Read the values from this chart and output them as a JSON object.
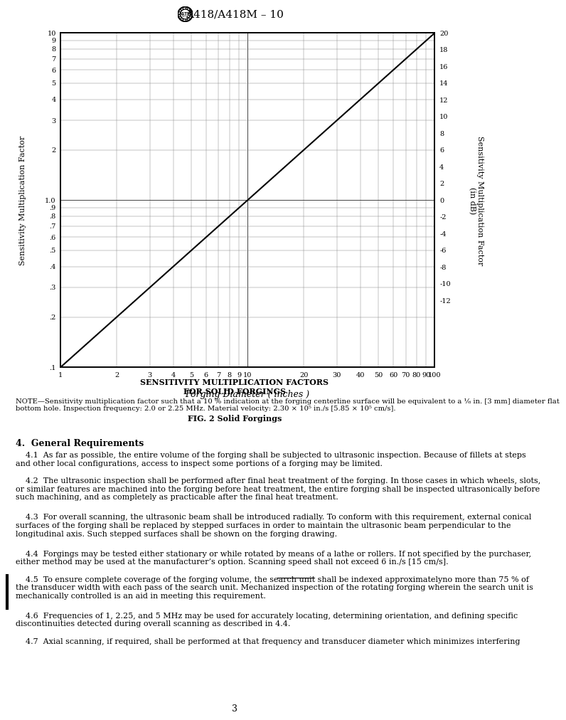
{
  "title": "A418/A418M – 10",
  "xlabel": "Forging Diameter ( inches )",
  "ylabel_left": "Sensitivity Multiplication Factor",
  "ylabel_right": "Sensitivity Multiplication Factor\n(in dB)",
  "chart_subtitle_line1": "SENSITIVITY MULTIPLICATION FACTORS",
  "chart_subtitle_line2": "FOR SOLID FORGINGS",
  "note_line1": "NOTE—Sensitivity multiplication factor such that a 10 % indication at the forging centerline surface will be equivalent to a ⅛ in. [3 mm] diameter flat",
  "note_line2": "bottom hole. Inspection frequency: 2.0 or 2.25 MHz. Material velocity: 2.30 × 10⁵ in./s [5.85 × 10⁵ cm/s].",
  "fig_caption": "FIG. 2 Solid Forgings",
  "page_number": "3",
  "section_header": "4.  General Requirements",
  "paragraphs": [
    "    4.1  As far as possible, the entire volume of the forging shall be subjected to ultrasonic inspection. Because of fillets at steps\nand other local configurations, access to inspect some portions of a forging may be limited.",
    "    4.2  The ultrasonic inspection shall be performed after final heat treatment of the forging. In those cases in which wheels, slots,\nor similar features are machined into the forging before heat treatment, the entire forging shall be inspected ultrasonically before\nsuch machining, and as completely as practicable after the final heat treatment.",
    "    4.3  For overall scanning, the ultrasonic beam shall be introduced radially. To conform with this requirement, external conical\nsurfaces of the forging shall be replaced by stepped surfaces in order to maintain the ultrasonic beam perpendicular to the\nlongitudinal axis. Such stepped surfaces shall be shown on the forging drawing.",
    "    4.4  Forgings may be tested either stationary or while rotated by means of a lathe or rollers. If not specified by the purchaser,\neither method may be used at the manufacturer’s option. Scanning speed shall not exceed 6 in./s [15 cm/s].",
    "    4.5  To ensure complete coverage of the forging volume, the search unit shall be indexed {strike}approximately{/strike}no more than 75 % of\nthe transducer width with each pass of the search unit. Mechanized inspection of the rotating forging wherein the search unit is\nmechanically controlled is an aid in meeting this requirement.",
    "    4.6  Frequencies of 1, 2.25, and 5 MHz may be used for accurately locating, determining orientation, and defining specific\ndiscontinuities detected during overall scanning as described in 4.4.",
    "    4.7  Axial scanning, if required, shall be performed at that frequency and transducer diameter which minimizes interfering"
  ],
  "background_color": "#ffffff",
  "xmin": 1,
  "xmax": 100,
  "ymin": 0.1,
  "ymax": 10,
  "ytick_labels": {
    "0.1": ".1",
    "0.2": ".2",
    "0.3": ".3",
    "0.4": ".4",
    "0.5": ".5",
    "0.6": ".6",
    "0.7": ".7",
    "0.8": ".8",
    "0.9": ".9",
    "1.0": "1.0",
    "2.0": "2",
    "3.0": "3",
    "4.0": "4",
    "5.0": "5",
    "6.0": "6",
    "7.0": "7",
    "8.0": "8",
    "9.0": "9",
    "10.0": "10"
  },
  "xtick_labels": {
    "1": "1",
    "2": "2",
    "3": "3",
    "4": "4",
    "5": "5",
    "6": "6",
    "7": "7",
    "8": "8",
    "9": "9",
    "10": "10",
    "20": "20",
    "30": "30",
    "40": "40",
    "50": "50",
    "60": "60",
    "70": "70",
    "80": "80",
    "90": "90",
    "100": "100"
  },
  "db_ticks": {
    "10.0": "20",
    "7.943": "18",
    "6.310": "16",
    "5.012": "14",
    "3.981": "12",
    "3.162": "10",
    "2.512": "8",
    "2.0": "6",
    "1.585": "4",
    "1.259": "2",
    "1.0": "0",
    "0.794": "-2",
    "0.631": "-4",
    "0.501": "-6",
    "0.398": "-8",
    "0.316": "-10",
    "0.251": "-12"
  }
}
